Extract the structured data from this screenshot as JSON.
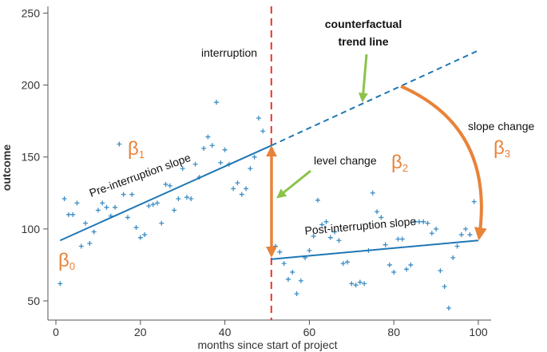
{
  "chart_data": {
    "type": "scatter",
    "title": "",
    "xlabel": "months since start of project",
    "ylabel": "outcome",
    "xlim": [
      0,
      100
    ],
    "ylim": [
      40,
      255
    ],
    "xticks": [
      0,
      20,
      40,
      60,
      80,
      100
    ],
    "yticks": [
      50,
      100,
      150,
      200,
      250
    ],
    "grid": "none",
    "interruption_x": 51,
    "series": [
      {
        "points": [
          [
            1,
            62
          ],
          [
            2,
            121
          ],
          [
            3,
            110
          ],
          [
            4,
            110
          ],
          [
            5,
            118
          ],
          [
            6,
            88
          ],
          [
            7,
            104
          ],
          [
            8,
            90
          ],
          [
            9,
            98
          ],
          [
            10,
            113
          ],
          [
            11,
            118
          ],
          [
            12,
            115
          ],
          [
            13,
            109
          ],
          [
            14,
            115
          ],
          [
            15,
            159
          ],
          [
            16,
            124
          ],
          [
            17,
            108
          ],
          [
            18,
            124
          ],
          [
            19,
            101
          ],
          [
            20,
            94
          ],
          [
            21,
            96
          ],
          [
            22,
            116
          ],
          [
            23,
            117
          ],
          [
            24,
            118
          ],
          [
            25,
            104
          ],
          [
            26,
            131
          ],
          [
            27,
            130
          ],
          [
            28,
            113
          ],
          [
            29,
            121
          ],
          [
            30,
            142
          ],
          [
            31,
            122
          ],
          [
            32,
            121
          ],
          [
            33,
            145
          ],
          [
            34,
            136
          ],
          [
            35,
            156
          ],
          [
            36,
            164
          ],
          [
            37,
            158
          ],
          [
            38,
            188
          ],
          [
            39,
            146
          ],
          [
            40,
            155
          ],
          [
            41,
            145
          ],
          [
            42,
            128
          ],
          [
            43,
            132
          ],
          [
            44,
            124
          ],
          [
            45,
            128
          ],
          [
            46,
            142
          ],
          [
            47,
            150
          ],
          [
            48,
            177
          ],
          [
            49,
            168
          ],
          [
            52,
            88
          ],
          [
            53,
            84
          ],
          [
            54,
            76
          ],
          [
            55,
            65
          ],
          [
            56,
            70
          ],
          [
            57,
            55
          ],
          [
            58,
            64
          ],
          [
            59,
            80
          ],
          [
            60,
            85
          ],
          [
            61,
            95
          ],
          [
            62,
            120
          ],
          [
            63,
            103
          ],
          [
            64,
            105
          ],
          [
            65,
            94
          ],
          [
            66,
            98
          ],
          [
            67,
            92
          ],
          [
            68,
            76
          ],
          [
            69,
            77
          ],
          [
            70,
            62
          ],
          [
            71,
            61
          ],
          [
            72,
            63
          ],
          [
            73,
            62
          ],
          [
            74,
            85
          ],
          [
            75,
            125
          ],
          [
            76,
            112
          ],
          [
            77,
            108
          ],
          [
            78,
            89
          ],
          [
            79,
            75
          ],
          [
            80,
            70
          ],
          [
            81,
            93
          ],
          [
            82,
            93
          ],
          [
            83,
            72
          ],
          [
            84,
            75
          ],
          [
            85,
            105
          ],
          [
            86,
            105
          ],
          [
            87,
            105
          ],
          [
            88,
            104
          ],
          [
            89,
            97
          ],
          [
            90,
            100
          ],
          [
            91,
            71
          ],
          [
            92,
            60
          ],
          [
            93,
            45
          ],
          [
            94,
            80
          ],
          [
            95,
            88
          ],
          [
            96,
            96
          ],
          [
            97,
            100
          ],
          [
            98,
            96
          ],
          [
            99,
            119
          ]
        ]
      }
    ],
    "fitted_lines": {
      "pre": {
        "x": [
          1,
          51
        ],
        "y": [
          92,
          158
        ]
      },
      "counterfactual": {
        "x": [
          51,
          100
        ],
        "y": [
          158,
          224
        ]
      },
      "post": {
        "x": [
          51,
          100
        ],
        "y": [
          79,
          92
        ]
      }
    },
    "annotations": {
      "interruption": "interruption",
      "counterfactual_line1": "counterfactual",
      "counterfactual_line2": "trend line",
      "pre_slope": "Pre-interruption slope",
      "post_slope": "Post-interruption slope",
      "level_change": "level change",
      "slope_change": "slope change",
      "beta0": "β",
      "beta0_sub": "0",
      "beta1": "β",
      "beta1_sub": "1",
      "beta2": "β",
      "beta2_sub": "2",
      "beta3": "β",
      "beta3_sub": "3"
    },
    "colors": {
      "points": "#3d8dc4",
      "fit_line": "#1f77b4",
      "interruption_line": "#e8332a",
      "arrows": "#e8833a",
      "callout_arrows": "#8bc34a",
      "beta_text": "#e8833a",
      "axis": "#555555"
    }
  }
}
